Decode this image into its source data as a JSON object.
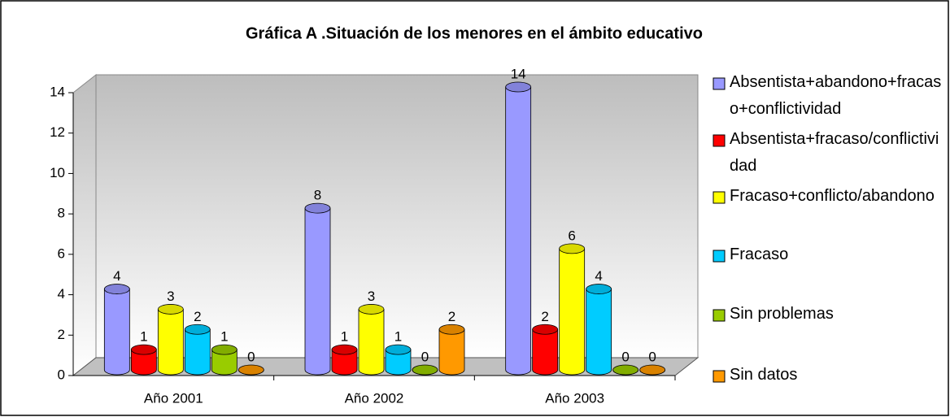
{
  "chart_data": {
    "type": "bar3d",
    "title": "Gráfica A .Situación de los menores en el ámbito educativo",
    "categories": [
      "Año 2001",
      "Año 2002",
      "Año 2003"
    ],
    "series": [
      {
        "name": "Absentista+abandono+fracaso+conflictividad",
        "color": "#9999ff",
        "values": [
          4,
          8,
          14
        ]
      },
      {
        "name": "Absentista+fracaso/conflictividad",
        "color": "#ff0000",
        "values": [
          1,
          1,
          2
        ]
      },
      {
        "name": "Fracaso+conflicto/abandono",
        "color": "#ffff00",
        "values": [
          3,
          3,
          6
        ]
      },
      {
        "name": "Fracaso",
        "color": "#00ccff",
        "values": [
          2,
          1,
          4
        ]
      },
      {
        "name": "Sin problemas",
        "color": "#99cc00",
        "values": [
          1,
          0,
          0
        ]
      },
      {
        "name": "Sin datos",
        "color": "#ff9900",
        "values": [
          0,
          2,
          0
        ]
      }
    ],
    "ylim": [
      0,
      14
    ],
    "yticks": [
      0,
      2,
      4,
      6,
      8,
      10,
      12,
      14
    ],
    "legend": "right"
  }
}
